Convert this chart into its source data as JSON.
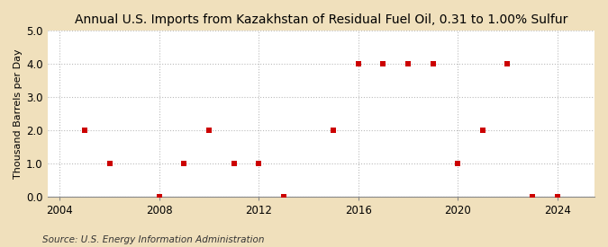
{
  "title": "Annual U.S. Imports from Kazakhstan of Residual Fuel Oil, 0.31 to 1.00% Sulfur",
  "ylabel": "Thousand Barrels per Day",
  "source": "Source: U.S. Energy Information Administration",
  "background_color": "#f0e0bc",
  "plot_bg_color": "#ffffff",
  "xlim": [
    2003.5,
    2025.5
  ],
  "ylim": [
    0.0,
    5.0
  ],
  "xticks": [
    2004,
    2008,
    2012,
    2016,
    2020,
    2024
  ],
  "yticks": [
    0.0,
    1.0,
    2.0,
    3.0,
    4.0,
    5.0
  ],
  "data": {
    "years": [
      2005,
      2006,
      2008,
      2009,
      2010,
      2011,
      2012,
      2013,
      2015,
      2016,
      2017,
      2018,
      2019,
      2020,
      2021,
      2022,
      2023,
      2024
    ],
    "values": [
      2.0,
      1.0,
      0.0,
      1.0,
      2.0,
      1.0,
      1.0,
      0.0,
      2.0,
      4.0,
      4.0,
      4.0,
      4.0,
      1.0,
      2.0,
      4.0,
      0.0,
      0.0
    ]
  },
  "marker_color": "#cc0000",
  "marker_size": 18,
  "grid_color": "#bbbbbb",
  "title_fontsize": 10,
  "label_fontsize": 8,
  "tick_fontsize": 8.5,
  "source_fontsize": 7.5
}
